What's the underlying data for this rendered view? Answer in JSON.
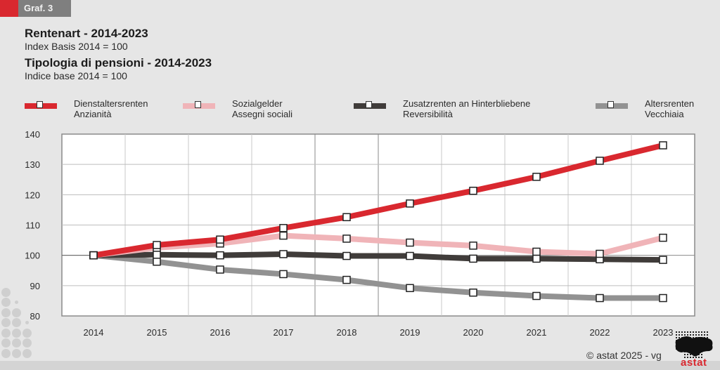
{
  "header": {
    "tag_label": "Graf. 3",
    "title_de": "Rentenart - 2014-2023",
    "subtitle_de": "Index Basis 2014 = 100",
    "title_it": "Tipologia di pensioni - 2014-2023",
    "subtitle_it": "Indice base 2014 = 100"
  },
  "legend": [
    {
      "line1": "Dienstaltersrenten",
      "line2": "Anzianità",
      "color": "#d9282f"
    },
    {
      "line1": "Sozialgelder",
      "line2": "Assegni sociali",
      "color": "#f0b4b8"
    },
    {
      "line1": "Zusatzrenten an Hinterbliebene",
      "line2": "Reversibilità",
      "color": "#403c3a"
    },
    {
      "line1": "Altersrenten",
      "line2": "Vecchiaia",
      "color": "#929292"
    }
  ],
  "footer": {
    "copyright": "©  astat 2025 - vg",
    "logo_text": "astat"
  },
  "colors": {
    "accent_red": "#d9282f",
    "tag_grey": "#7f7f7f",
    "background": "#e6e6e6"
  },
  "chart_data": {
    "type": "line",
    "title": "Rentenart - 2014-2023 / Tipologia di pensioni - 2014-2023",
    "subtitle": "Index Basis 2014 = 100 / Indice base 2014 = 100",
    "xlabel": "",
    "ylabel": "",
    "x": [
      "2014",
      "2015",
      "2016",
      "2017",
      "2018",
      "2019",
      "2020",
      "2021",
      "2022",
      "2023"
    ],
    "ylim": [
      80,
      140
    ],
    "yticks": [
      80,
      90,
      100,
      110,
      120,
      130,
      140
    ],
    "grid": true,
    "legend_position": "top",
    "series": [
      {
        "name": "Dienstaltersrenten / Anzianità",
        "color": "#d9282f",
        "values": [
          100,
          103.4,
          105.2,
          109.0,
          112.6,
          117.1,
          121.3,
          125.9,
          131.2,
          136.3
        ]
      },
      {
        "name": "Sozialgelder / Assegni sociali",
        "color": "#f0b4b8",
        "values": [
          100,
          102.5,
          103.9,
          106.5,
          105.5,
          104.2,
          103.2,
          101.2,
          100.5,
          105.8
        ]
      },
      {
        "name": "Zusatzrenten an Hinterbliebene / Reversibilità",
        "color": "#403c3a",
        "values": [
          100,
          100.2,
          100.0,
          100.4,
          99.8,
          99.8,
          98.9,
          98.9,
          98.7,
          98.5
        ]
      },
      {
        "name": "Altersrenten / Vecchiaia",
        "color": "#929292",
        "values": [
          100,
          97.9,
          95.3,
          93.8,
          91.9,
          89.2,
          87.7,
          86.6,
          85.9,
          85.9
        ]
      }
    ]
  }
}
